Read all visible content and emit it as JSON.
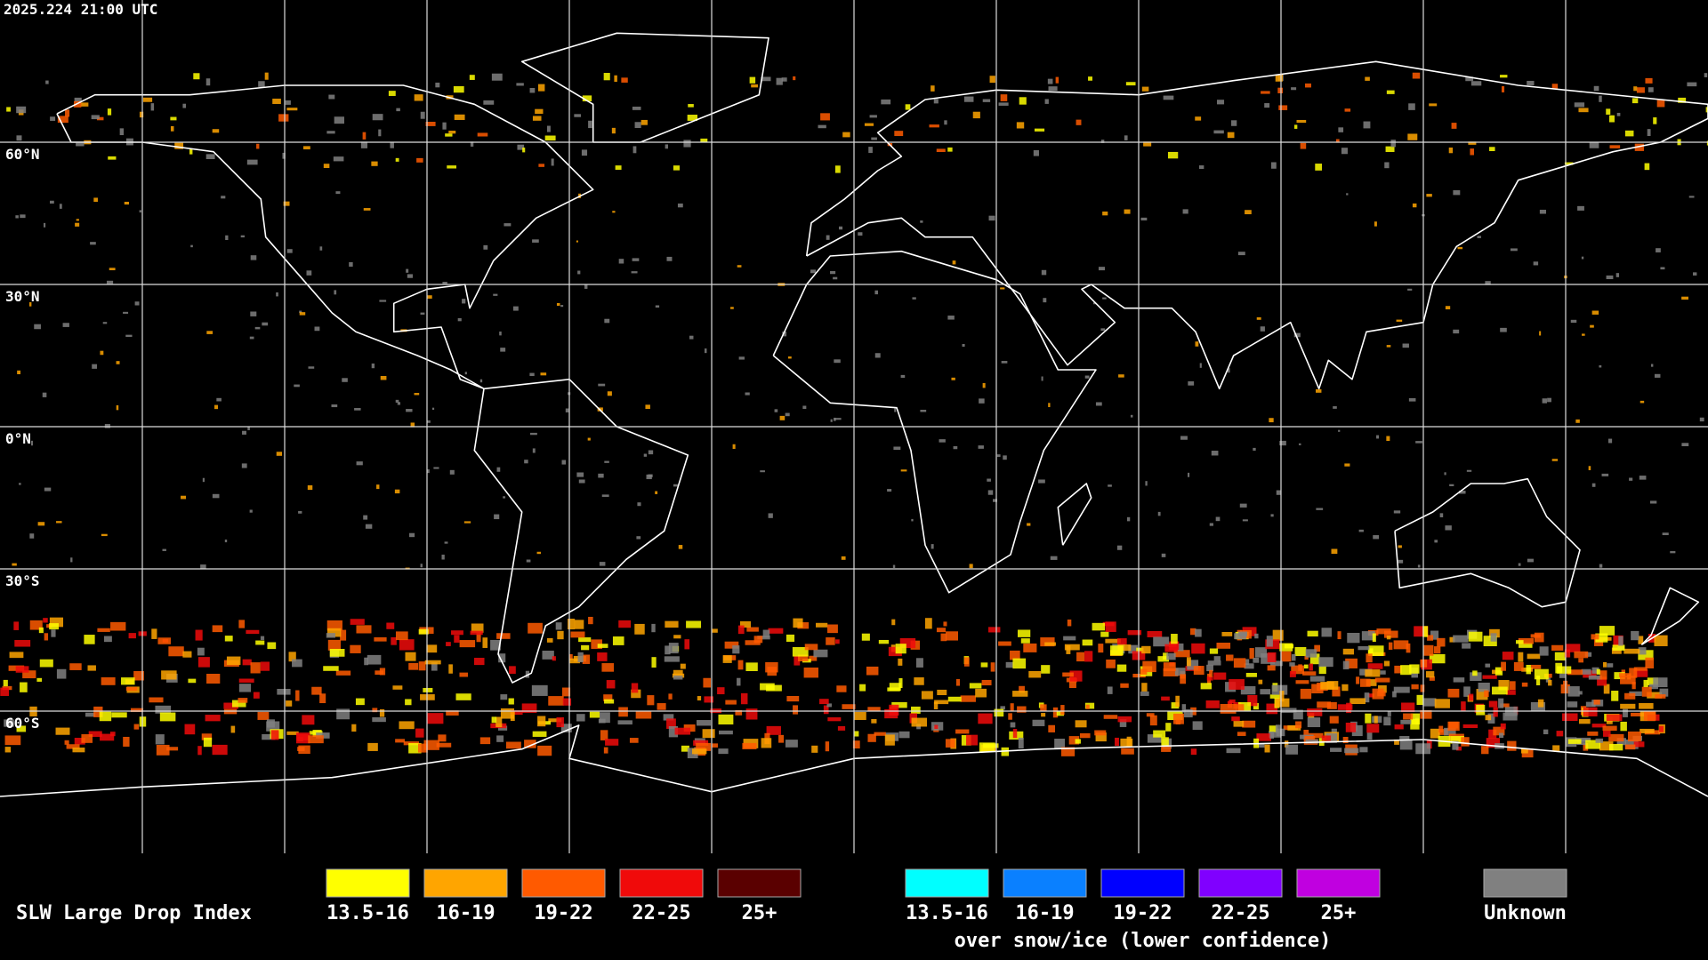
{
  "header": {
    "timestamp": "2025.224 21:00 UTC"
  },
  "map": {
    "latitude_labels": [
      "60°N",
      "30°N",
      "0°N",
      "30°S",
      "60°S"
    ]
  },
  "legend": {
    "title": "SLW Large Drop Index",
    "groups": [
      {
        "items": [
          {
            "label": "13.5-16",
            "color": "#ffff00"
          },
          {
            "label": "16-19",
            "color": "#ffa500"
          },
          {
            "label": "19-22",
            "color": "#ff5a00"
          },
          {
            "label": "22-25",
            "color": "#f00a0a"
          },
          {
            "label": "25+",
            "color": "#5a0000"
          }
        ]
      },
      {
        "items": [
          {
            "label": "13.5-16",
            "color": "#00ffff"
          },
          {
            "label": "16-19",
            "color": "#0a80ff"
          },
          {
            "label": "19-22",
            "color": "#0000ff"
          },
          {
            "label": "22-25",
            "color": "#8000ff"
          },
          {
            "label": "25+",
            "color": "#c000e0"
          }
        ],
        "caption": "over snow/ice (lower confidence)"
      },
      {
        "items": [
          {
            "label": "Unknown",
            "color": "#808080"
          }
        ]
      }
    ]
  }
}
